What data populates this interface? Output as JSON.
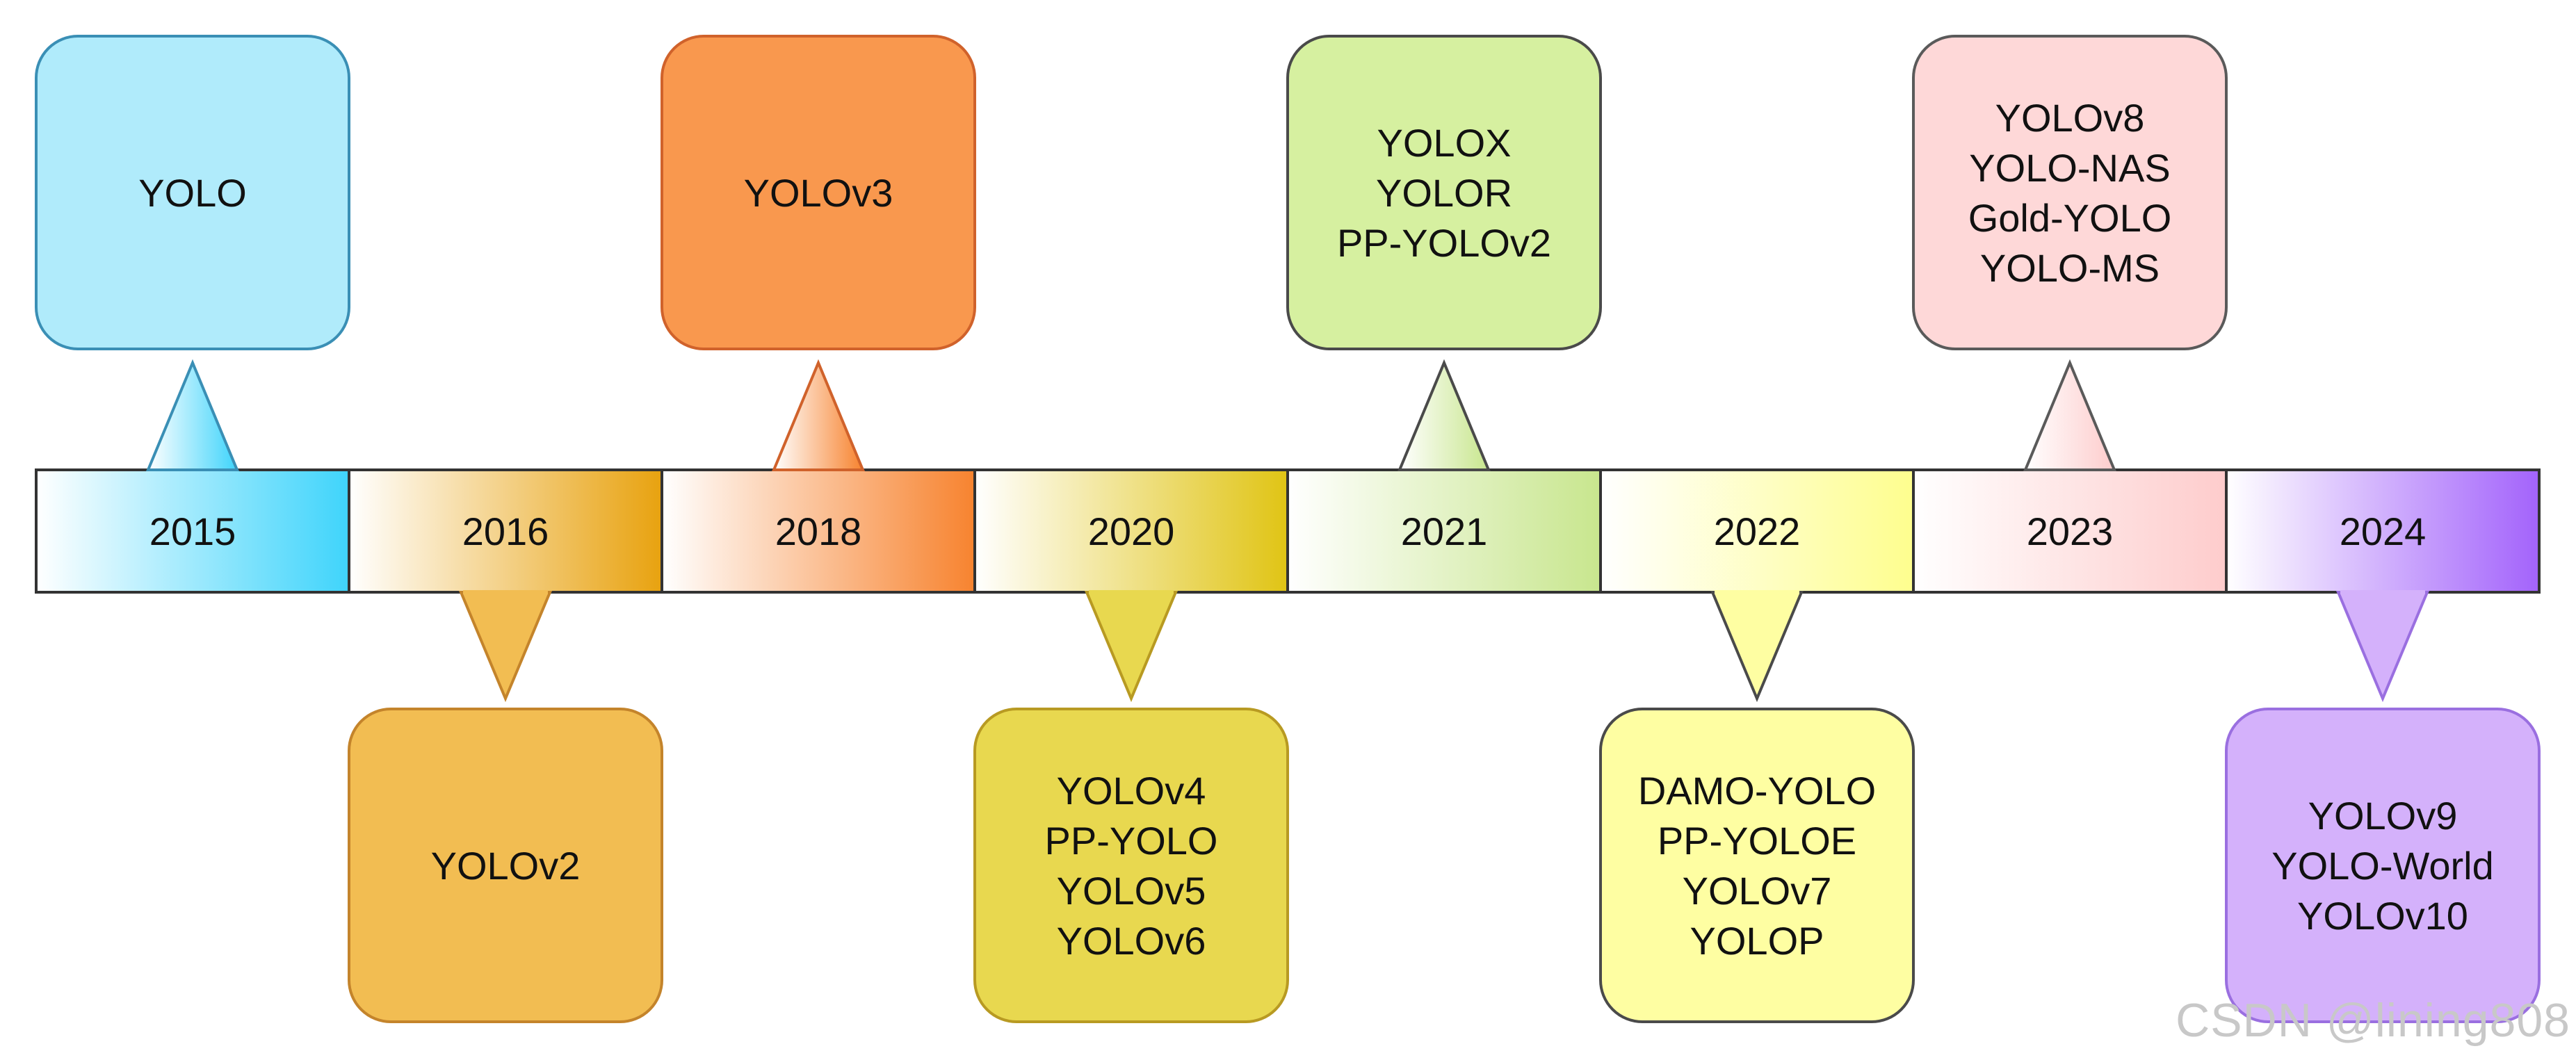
{
  "timeline": [
    {
      "year": "2015",
      "position": "top",
      "models": [
        "YOLO"
      ],
      "colors": {
        "fill": "#b0ebfb",
        "stroke": "#3a8fb5",
        "grad_end": "#3fd4fb"
      }
    },
    {
      "year": "2016",
      "position": "bottom",
      "models": [
        "YOLOv2"
      ],
      "colors": {
        "fill": "#f2bd52",
        "stroke": "#c4842b",
        "grad_end": "#e8a20f"
      }
    },
    {
      "year": "2018",
      "position": "top",
      "models": [
        "YOLOv3"
      ],
      "colors": {
        "fill": "#f9984e",
        "stroke": "#d0622b",
        "grad_end": "#f7832f"
      }
    },
    {
      "year": "2020",
      "position": "bottom",
      "models": [
        "YOLOv4",
        "PP-YOLO",
        "YOLOv5",
        "YOLOv6"
      ],
      "colors": {
        "fill": "#e8d84f",
        "stroke": "#b89a22",
        "grad_end": "#e0c414"
      }
    },
    {
      "year": "2021",
      "position": "top",
      "models": [
        "YOLOX",
        "YOLOR",
        "PP-YOLOv2"
      ],
      "colors": {
        "fill": "#d6f0a0",
        "stroke": "#4a4a4a",
        "grad_end": "#c8e68e"
      }
    },
    {
      "year": "2022",
      "position": "bottom",
      "models": [
        "DAMO-YOLO",
        "PP-YOLOE",
        "YOLOv7",
        "YOLOP"
      ],
      "colors": {
        "fill": "#fefea2",
        "stroke": "#4a4a4a",
        "grad_end": "#fefe8e"
      }
    },
    {
      "year": "2023",
      "position": "top",
      "models": [
        "YOLOv8",
        "YOLO-NAS",
        "Gold-YOLO",
        "YOLO-MS"
      ],
      "colors": {
        "fill": "#fed8d8",
        "stroke": "#5a5a5a",
        "grad_end": "#fecccc"
      }
    },
    {
      "year": "2024",
      "position": "bottom",
      "models": [
        "YOLOv9",
        "YOLO-World",
        "YOLOv10"
      ],
      "colors": {
        "fill": "#d4b1fb",
        "stroke": "#9a6fe0",
        "grad_end": "#a363fb"
      }
    }
  ],
  "watermark": "CSDN @lining808"
}
